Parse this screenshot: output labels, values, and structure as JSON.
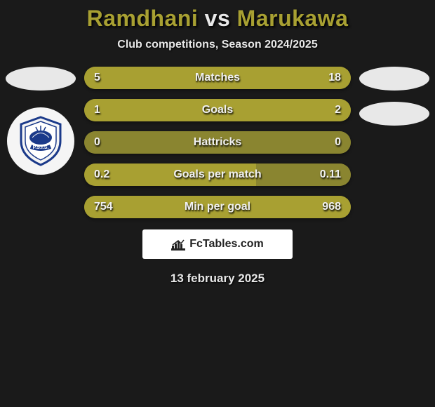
{
  "title": {
    "player1": "Ramdhani",
    "vs": "vs",
    "player2": "Marukawa",
    "player1_color": "#a8a032",
    "player2_color": "#a8a032",
    "vs_color": "#e8e8e8",
    "fontsize": 32
  },
  "subtitle": "Club competitions, Season 2024/2025",
  "background_color": "#1a1a1a",
  "slot_bg": "#e8e8e8",
  "bars": [
    {
      "label": "Matches",
      "left_value": "5",
      "right_value": "18",
      "left_num": 5,
      "right_num": 18,
      "left_color": "#a8a032",
      "right_color": "#a8a032",
      "bg_color": "#a8a032"
    },
    {
      "label": "Goals",
      "left_value": "1",
      "right_value": "2",
      "left_num": 1,
      "right_num": 2,
      "left_color": "#a8a032",
      "right_color": "#a8a032",
      "bg_color": "#a8a032"
    },
    {
      "label": "Hattricks",
      "left_value": "0",
      "right_value": "0",
      "left_num": 0,
      "right_num": 0,
      "left_color": "#8a8530",
      "right_color": "#8a8530",
      "bg_color": "#8a8530"
    },
    {
      "label": "Goals per match",
      "left_value": "0.2",
      "right_value": "0.11",
      "left_num": 0.2,
      "right_num": 0.11,
      "left_color": "#a8a032",
      "right_color": "#8a8530",
      "bg_color": "#948c30"
    },
    {
      "label": "Min per goal",
      "left_value": "754",
      "right_value": "968",
      "left_num": 754,
      "right_num": 968,
      "left_color": "#a8a032",
      "right_color": "#a8a032",
      "bg_color": "#a8a032"
    }
  ],
  "bar_style": {
    "height": 32,
    "radius": 16,
    "fontsize": 16,
    "text_color": "#f0f0f0",
    "label_fontsize": 16
  },
  "club_logo": {
    "text": "P.S.I.S.",
    "bg": "#f5f5f5",
    "accent": "#1b3a8a"
  },
  "attribution": {
    "text": "FcTables.com",
    "icon_name": "chart-icon",
    "bg": "#ffffff"
  },
  "date": "13 february 2025"
}
